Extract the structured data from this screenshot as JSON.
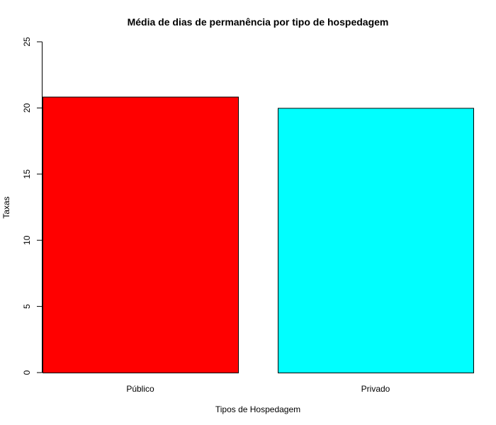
{
  "chart_data": {
    "type": "bar",
    "title": "Média de dias de permanência por tipo de hospedagem",
    "xlabel": "Tipos de Hospedagem",
    "ylabel": "Taxas",
    "categories": [
      "Público",
      "Privado"
    ],
    "values": [
      20.85,
      20.0
    ],
    "colors": [
      "#ff0000",
      "#00ffff"
    ],
    "ylim": [
      0,
      25
    ],
    "yticks": [
      0,
      5,
      10,
      15,
      20,
      25
    ],
    "grid": false,
    "legend": false
  }
}
